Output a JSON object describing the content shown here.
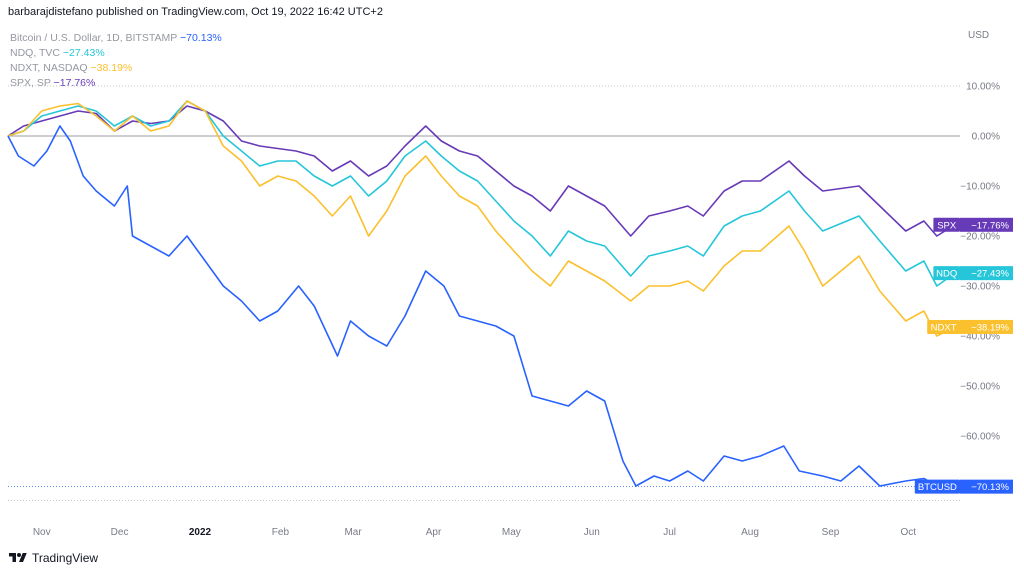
{
  "header": {
    "publisher_line": "barbarajdistefano published on TradingView.com, Oct 19, 2022 16:42 UTC+2"
  },
  "legend": [
    {
      "symbol": "Bitcoin / U.S. Dollar, 1D, BITSTAMP",
      "value": "−70.13%",
      "color": "#2962ff"
    },
    {
      "symbol": "NDQ, TVC",
      "value": "−27.43%",
      "color": "#26c6da"
    },
    {
      "symbol": "NDXT, NASDAQ",
      "value": "−38.19%",
      "color": "#fbc02d"
    },
    {
      "symbol": "SPX, SP",
      "value": "−17.76%",
      "color": "#673ab7"
    }
  ],
  "footer": {
    "brand": "TradingView",
    "logo_icon": "tradingview-logo-icon"
  },
  "chart_data": {
    "type": "line",
    "currency_label": "USD",
    "ylim": [
      -72,
      16
    ],
    "y_ticks": [
      "10.00%",
      "0.00%",
      "−10.00%",
      "−20.00%",
      "−30.00%",
      "−40.00%",
      "−50.00%",
      "−60.00%"
    ],
    "y_tick_values": [
      10,
      0,
      -10,
      -20,
      -30,
      -40,
      -50,
      -60
    ],
    "x_ticks": [
      "Nov",
      "Dec",
      "2022",
      "Feb",
      "Mar",
      "Apr",
      "May",
      "Jun",
      "Jul",
      "Aug",
      "Sep",
      "Oct"
    ],
    "x_tick_values": [
      "2021-11-01",
      "2021-12-01",
      "2022-01-01",
      "2022-02-01",
      "2022-03-01",
      "2022-04-01",
      "2022-05-01",
      "2022-06-01",
      "2022-07-01",
      "2022-08-01",
      "2022-09-01",
      "2022-10-01"
    ],
    "xlim": [
      "2021-10-19",
      "2022-10-19"
    ],
    "grid": false,
    "series": [
      {
        "name": "SPX",
        "color": "#673ab7",
        "last_label": "−17.76%",
        "points": [
          [
            "2021-10-19",
            0
          ],
          [
            "2021-10-25",
            2
          ],
          [
            "2021-11-01",
            3
          ],
          [
            "2021-11-08",
            4
          ],
          [
            "2021-11-15",
            5
          ],
          [
            "2021-11-22",
            4.5
          ],
          [
            "2021-11-29",
            1
          ],
          [
            "2021-12-06",
            3
          ],
          [
            "2021-12-13",
            2.5
          ],
          [
            "2021-12-20",
            3
          ],
          [
            "2021-12-27",
            6
          ],
          [
            "2022-01-03",
            5
          ],
          [
            "2022-01-10",
            3
          ],
          [
            "2022-01-17",
            -1
          ],
          [
            "2022-01-24",
            -2
          ],
          [
            "2022-01-31",
            -2.5
          ],
          [
            "2022-02-07",
            -3
          ],
          [
            "2022-02-14",
            -4
          ],
          [
            "2022-02-21",
            -7
          ],
          [
            "2022-02-28",
            -5
          ],
          [
            "2022-03-07",
            -8
          ],
          [
            "2022-03-14",
            -6
          ],
          [
            "2022-03-21",
            -2
          ],
          [
            "2022-03-29",
            2
          ],
          [
            "2022-04-04",
            -1
          ],
          [
            "2022-04-11",
            -3
          ],
          [
            "2022-04-18",
            -4
          ],
          [
            "2022-04-25",
            -7
          ],
          [
            "2022-05-02",
            -10
          ],
          [
            "2022-05-09",
            -12
          ],
          [
            "2022-05-16",
            -15
          ],
          [
            "2022-05-23",
            -10
          ],
          [
            "2022-05-30",
            -12
          ],
          [
            "2022-06-06",
            -14
          ],
          [
            "2022-06-16",
            -20
          ],
          [
            "2022-06-23",
            -16
          ],
          [
            "2022-07-01",
            -15
          ],
          [
            "2022-07-08",
            -14
          ],
          [
            "2022-07-14",
            -16
          ],
          [
            "2022-07-22",
            -11
          ],
          [
            "2022-07-29",
            -9
          ],
          [
            "2022-08-05",
            -9
          ],
          [
            "2022-08-16",
            -5
          ],
          [
            "2022-08-22",
            -8
          ],
          [
            "2022-08-29",
            -11
          ],
          [
            "2022-09-12",
            -10
          ],
          [
            "2022-09-20",
            -14
          ],
          [
            "2022-09-30",
            -19
          ],
          [
            "2022-10-07",
            -17
          ],
          [
            "2022-10-12",
            -20
          ],
          [
            "2022-10-19",
            -17.76
          ]
        ]
      },
      {
        "name": "NDQ",
        "color": "#26c6da",
        "last_label": "−27.43%",
        "points": [
          [
            "2021-10-19",
            0
          ],
          [
            "2021-10-25",
            1
          ],
          [
            "2021-11-01",
            4
          ],
          [
            "2021-11-08",
            5
          ],
          [
            "2021-11-15",
            6
          ],
          [
            "2021-11-22",
            5
          ],
          [
            "2021-11-29",
            2
          ],
          [
            "2021-12-06",
            4
          ],
          [
            "2021-12-13",
            2
          ],
          [
            "2021-12-20",
            3
          ],
          [
            "2021-12-27",
            7
          ],
          [
            "2022-01-03",
            5
          ],
          [
            "2022-01-10",
            0
          ],
          [
            "2022-01-17",
            -3
          ],
          [
            "2022-01-24",
            -6
          ],
          [
            "2022-01-31",
            -5
          ],
          [
            "2022-02-07",
            -5
          ],
          [
            "2022-02-14",
            -8
          ],
          [
            "2022-02-21",
            -10
          ],
          [
            "2022-02-28",
            -8
          ],
          [
            "2022-03-07",
            -12
          ],
          [
            "2022-03-14",
            -9
          ],
          [
            "2022-03-21",
            -4
          ],
          [
            "2022-03-29",
            -1
          ],
          [
            "2022-04-04",
            -4
          ],
          [
            "2022-04-11",
            -7
          ],
          [
            "2022-04-18",
            -9
          ],
          [
            "2022-04-25",
            -13
          ],
          [
            "2022-05-02",
            -17
          ],
          [
            "2022-05-09",
            -20
          ],
          [
            "2022-05-16",
            -24
          ],
          [
            "2022-05-23",
            -19
          ],
          [
            "2022-05-30",
            -21
          ],
          [
            "2022-06-06",
            -22
          ],
          [
            "2022-06-16",
            -28
          ],
          [
            "2022-06-23",
            -24
          ],
          [
            "2022-07-01",
            -23
          ],
          [
            "2022-07-08",
            -22
          ],
          [
            "2022-07-14",
            -24
          ],
          [
            "2022-07-22",
            -18
          ],
          [
            "2022-07-29",
            -16
          ],
          [
            "2022-08-05",
            -15
          ],
          [
            "2022-08-16",
            -11
          ],
          [
            "2022-08-22",
            -15
          ],
          [
            "2022-08-29",
            -19
          ],
          [
            "2022-09-12",
            -16
          ],
          [
            "2022-09-20",
            -21
          ],
          [
            "2022-09-30",
            -27
          ],
          [
            "2022-10-07",
            -25
          ],
          [
            "2022-10-12",
            -30
          ],
          [
            "2022-10-19",
            -27.43
          ]
        ]
      },
      {
        "name": "NDXT",
        "color": "#fbc02d",
        "last_label": "−38.19%",
        "points": [
          [
            "2021-10-19",
            0
          ],
          [
            "2021-10-25",
            1
          ],
          [
            "2021-11-01",
            5
          ],
          [
            "2021-11-08",
            6
          ],
          [
            "2021-11-15",
            6.5
          ],
          [
            "2021-11-22",
            4
          ],
          [
            "2021-11-29",
            1
          ],
          [
            "2021-12-06",
            4
          ],
          [
            "2021-12-13",
            1
          ],
          [
            "2021-12-20",
            2
          ],
          [
            "2021-12-27",
            7
          ],
          [
            "2022-01-03",
            5
          ],
          [
            "2022-01-10",
            -2
          ],
          [
            "2022-01-17",
            -5
          ],
          [
            "2022-01-24",
            -10
          ],
          [
            "2022-01-31",
            -8
          ],
          [
            "2022-02-07",
            -9
          ],
          [
            "2022-02-14",
            -12
          ],
          [
            "2022-02-21",
            -16
          ],
          [
            "2022-02-28",
            -12
          ],
          [
            "2022-03-07",
            -20
          ],
          [
            "2022-03-14",
            -15
          ],
          [
            "2022-03-21",
            -8
          ],
          [
            "2022-03-29",
            -4
          ],
          [
            "2022-04-04",
            -8
          ],
          [
            "2022-04-11",
            -12
          ],
          [
            "2022-04-18",
            -14
          ],
          [
            "2022-04-25",
            -19
          ],
          [
            "2022-05-02",
            -23
          ],
          [
            "2022-05-09",
            -27
          ],
          [
            "2022-05-16",
            -30
          ],
          [
            "2022-05-23",
            -25
          ],
          [
            "2022-05-30",
            -27
          ],
          [
            "2022-06-06",
            -29
          ],
          [
            "2022-06-16",
            -33
          ],
          [
            "2022-06-23",
            -30
          ],
          [
            "2022-07-01",
            -30
          ],
          [
            "2022-07-08",
            -29
          ],
          [
            "2022-07-14",
            -31
          ],
          [
            "2022-07-22",
            -26
          ],
          [
            "2022-07-29",
            -23
          ],
          [
            "2022-08-05",
            -23
          ],
          [
            "2022-08-16",
            -18
          ],
          [
            "2022-08-22",
            -23
          ],
          [
            "2022-08-29",
            -30
          ],
          [
            "2022-09-12",
            -24
          ],
          [
            "2022-09-20",
            -31
          ],
          [
            "2022-09-30",
            -37
          ],
          [
            "2022-10-07",
            -35
          ],
          [
            "2022-10-12",
            -40
          ],
          [
            "2022-10-19",
            -38.19
          ]
        ]
      },
      {
        "name": "BTCUSD",
        "color": "#2962ff",
        "last_label": "−70.13%",
        "points": [
          [
            "2021-10-19",
            0
          ],
          [
            "2021-10-23",
            -4
          ],
          [
            "2021-10-29",
            -6
          ],
          [
            "2021-11-03",
            -3
          ],
          [
            "2021-11-08",
            2
          ],
          [
            "2021-11-12",
            -1
          ],
          [
            "2021-11-17",
            -8
          ],
          [
            "2021-11-22",
            -11
          ],
          [
            "2021-11-29",
            -14
          ],
          [
            "2021-12-04",
            -10
          ],
          [
            "2021-12-06",
            -20
          ],
          [
            "2021-12-13",
            -22
          ],
          [
            "2021-12-20",
            -24
          ],
          [
            "2021-12-27",
            -20
          ],
          [
            "2022-01-03",
            -25
          ],
          [
            "2022-01-10",
            -30
          ],
          [
            "2022-01-17",
            -33
          ],
          [
            "2022-01-24",
            -37
          ],
          [
            "2022-01-31",
            -35
          ],
          [
            "2022-02-08",
            -30
          ],
          [
            "2022-02-14",
            -34
          ],
          [
            "2022-02-23",
            -44
          ],
          [
            "2022-02-28",
            -37
          ],
          [
            "2022-03-07",
            -40
          ],
          [
            "2022-03-14",
            -42
          ],
          [
            "2022-03-21",
            -36
          ],
          [
            "2022-03-29",
            -27
          ],
          [
            "2022-04-05",
            -30
          ],
          [
            "2022-04-11",
            -36
          ],
          [
            "2022-04-18",
            -37
          ],
          [
            "2022-04-25",
            -38
          ],
          [
            "2022-05-02",
            -40
          ],
          [
            "2022-05-09",
            -52
          ],
          [
            "2022-05-16",
            -53
          ],
          [
            "2022-05-23",
            -54
          ],
          [
            "2022-05-30",
            -51
          ],
          [
            "2022-06-06",
            -53
          ],
          [
            "2022-06-13",
            -65
          ],
          [
            "2022-06-18",
            -70
          ],
          [
            "2022-06-25",
            -68
          ],
          [
            "2022-07-01",
            -69
          ],
          [
            "2022-07-08",
            -67
          ],
          [
            "2022-07-14",
            -69
          ],
          [
            "2022-07-22",
            -64
          ],
          [
            "2022-07-29",
            -65
          ],
          [
            "2022-08-05",
            -64
          ],
          [
            "2022-08-14",
            -62
          ],
          [
            "2022-08-20",
            -67
          ],
          [
            "2022-08-29",
            -68
          ],
          [
            "2022-09-05",
            -69
          ],
          [
            "2022-09-12",
            -66
          ],
          [
            "2022-09-20",
            -70
          ],
          [
            "2022-09-30",
            -69
          ],
          [
            "2022-10-07",
            -68.5
          ],
          [
            "2022-10-12",
            -70
          ],
          [
            "2022-10-19",
            -70.13
          ]
        ]
      }
    ]
  }
}
